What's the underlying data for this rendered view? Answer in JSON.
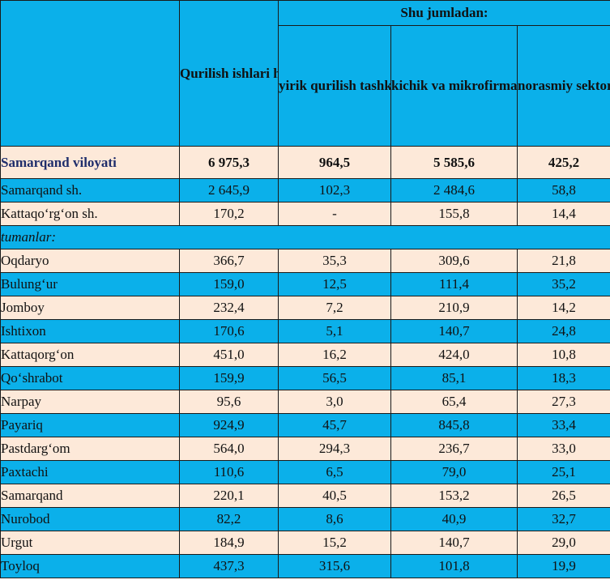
{
  "header": {
    "group_title": "Shu jumladan:",
    "col_volume": "Qurilish ishlari hajmi, mlrd so‘m",
    "col_large": "yirik qurilish tashkilotlari",
    "col_small": "kichik va mikrofirmalar",
    "col_informal": "norasmiy sektor"
  },
  "summary": {
    "name": "Samarqand viloyati",
    "v1": "6 975,3",
    "v2": "964,5",
    "v3": "5 585,6",
    "v4": "425,2"
  },
  "cities": [
    {
      "name": "Samarqand sh.",
      "v1": "2 645,9",
      "v2": "102,3",
      "v3": "2 484,6",
      "v4": "58,8"
    },
    {
      "name": "Kattaqo‘rg‘on sh.",
      "v1": "170,2",
      "v2": "-",
      "v3": "155,8",
      "v4": "14,4"
    }
  ],
  "districts_label": "tumanlar:",
  "districts": [
    {
      "name": "Oqdaryo",
      "v1": "366,7",
      "v2": "35,3",
      "v3": "309,6",
      "v4": "21,8"
    },
    {
      "name": "Bulung‘ur",
      "v1": "159,0",
      "v2": "12,5",
      "v3": "111,4",
      "v4": "35,2"
    },
    {
      "name": "Jomboy",
      "v1": "232,4",
      "v2": "7,2",
      "v3": "210,9",
      "v4": "14,2"
    },
    {
      "name": "Ishtixon",
      "v1": "170,6",
      "v2": "5,1",
      "v3": "140,7",
      "v4": "24,8"
    },
    {
      "name": "Kattaqorg‘on",
      "v1": "451,0",
      "v2": "16,2",
      "v3": "424,0",
      "v4": "10,8"
    },
    {
      "name": "Qo‘shrabot",
      "v1": "159,9",
      "v2": "56,5",
      "v3": "85,1",
      "v4": "18,3"
    },
    {
      "name": "Narpay",
      "v1": "95,6",
      "v2": "3,0",
      "v3": "65,4",
      "v4": "27,3"
    },
    {
      "name": "Payariq",
      "v1": "924,9",
      "v2": "45,7",
      "v3": "845,8",
      "v4": "33,4"
    },
    {
      "name": "Pastdarg‘om",
      "v1": "564,0",
      "v2": "294,3",
      "v3": "236,7",
      "v4": "33,0"
    },
    {
      "name": "Paxtachi",
      "v1": "110,6",
      "v2": "6,5",
      "v3": "79,0",
      "v4": "25,1"
    },
    {
      "name": "Samarqand",
      "v1": "220,1",
      "v2": "40,5",
      "v3": "153,2",
      "v4": "26,5"
    },
    {
      "name": "Nurobod",
      "v1": "82,2",
      "v2": "8,6",
      "v3": "40,9",
      "v4": "32,7"
    },
    {
      "name": "Urgut",
      "v1": "184,9",
      "v2": "15,2",
      "v3": "140,7",
      "v4": "29,0"
    },
    {
      "name": "Toyloq",
      "v1": "437,3",
      "v2": "315,6",
      "v3": "101,8",
      "v4": "19,9"
    }
  ],
  "colors": {
    "header_blue": "#0bb0ea",
    "cream": "#fde9d9",
    "navy_text": "#1f2d6b"
  }
}
